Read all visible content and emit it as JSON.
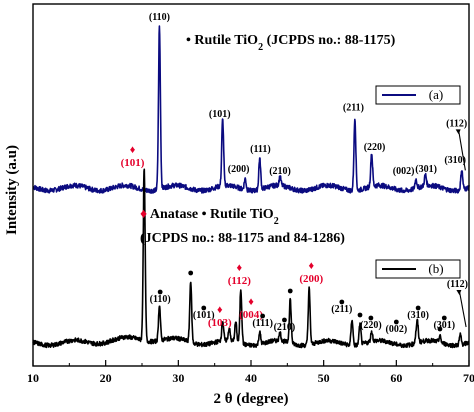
{
  "chart_data": {
    "type": "line",
    "xlabel": "2 θ (degree)",
    "ylabel": "Intensity (a.u)",
    "xlim": [
      10,
      70
    ],
    "xticks": [
      10,
      20,
      30,
      40,
      50,
      60,
      70
    ],
    "grid": false,
    "colors": {
      "a": "#0b0b80",
      "b": "#000000",
      "anatase": "#e4002b",
      "axis": "#000000"
    },
    "series": [
      {
        "name": "(a)",
        "legend": "(a)",
        "color": "#0b0b80",
        "heading": {
          "lines": [
            {
              "parts": [
                {
                  "text": "•",
                  "color": "#000000"
                },
                {
                  "text": " Rutile TiO",
                  "color": "#000000"
                },
                {
                  "text": "2",
                  "color": "#000000",
                  "sub": true
                },
                {
                  "text": " (JCPDS no.: 88-1175)",
                  "color": "#000000"
                }
              ]
            }
          ]
        },
        "peaks": [
          {
            "pos": 27.4,
            "height": 0.74,
            "label": "(110)",
            "lx": 27.4
          },
          {
            "pos": 36.1,
            "height": 0.3,
            "label": "(101)",
            "lx": 35.7
          },
          {
            "pos": 39.2,
            "height": 0.05,
            "label": "(200)",
            "lx": 38.3
          },
          {
            "pos": 41.2,
            "height": 0.14,
            "label": "(111)",
            "lx": 41.3
          },
          {
            "pos": 44.0,
            "height": 0.04,
            "label": "(210)",
            "lx": 44.0
          },
          {
            "pos": 54.3,
            "height": 0.33,
            "label": "(211)",
            "lx": 54.1
          },
          {
            "pos": 56.6,
            "height": 0.15,
            "label": "(220)",
            "lx": 57.0
          },
          {
            "pos": 62.7,
            "height": 0.04,
            "label": "(002)",
            "lx": 61.0
          },
          {
            "pos": 64.0,
            "height": 0.05,
            "label": "(301)",
            "lx": 64.1
          },
          {
            "pos": 69.0,
            "height": 0.09,
            "label": "(310)",
            "lx": 68.1
          }
        ],
        "extra_labels": [
          {
            "label": "(112)",
            "lx": 68.3,
            "arrow_to": 69.5
          }
        ]
      },
      {
        "name": "(b)",
        "legend": "(b)",
        "color": "#000000",
        "heading": {
          "lines": [
            {
              "parts": [
                {
                  "text": "♦",
                  "color": "#e4002b"
                },
                {
                  "text": " Anatase ",
                  "color": "#000000"
                },
                {
                  "text": "•",
                  "color": "#000000"
                },
                {
                  "text": " Rutile TiO",
                  "color": "#000000"
                },
                {
                  "text": "2",
                  "color": "#000000",
                  "sub": true
                }
              ]
            },
            {
              "parts": [
                {
                  "text": "(JCPDS no.: 88-1175 and 84-1286)",
                  "color": "#000000"
                }
              ]
            }
          ]
        },
        "peaks": [
          {
            "pos": 25.3,
            "height": 0.86,
            "label": "(101)",
            "lx": 23.7,
            "anatase": true
          },
          {
            "pos": 27.4,
            "height": 0.18,
            "label": "(110)",
            "lx": 27.5
          },
          {
            "pos": 31.7,
            "height": 0.31,
            "label": "",
            "lx": 31.7
          },
          {
            "pos": 36.1,
            "height": 0.1,
            "label": "(101)",
            "lx": 33.5
          },
          {
            "pos": 37.0,
            "height": 0.06,
            "label": "(103)",
            "lx": 35.7,
            "anatase": true
          },
          {
            "pos": 37.9,
            "height": 0.1,
            "label": "(004)",
            "lx": 40.0,
            "anatase": true
          },
          {
            "pos": 38.6,
            "height": 0.27,
            "label": "(112)",
            "lx": 38.4,
            "anatase": true
          },
          {
            "pos": 41.2,
            "height": 0.06,
            "label": "(111)",
            "lx": 41.6
          },
          {
            "pos": 44.0,
            "height": 0.04,
            "label": "(210)",
            "lx": 44.6
          },
          {
            "pos": 45.4,
            "height": 0.22,
            "label": "",
            "lx": 45.4
          },
          {
            "pos": 48.0,
            "height": 0.28,
            "label": "(200)",
            "lx": 48.3,
            "anatase": true
          },
          {
            "pos": 53.9,
            "height": 0.13,
            "label": "(211)",
            "lx": 52.5
          },
          {
            "pos": 55.0,
            "height": 0.1,
            "label": "",
            "lx": 55.0
          },
          {
            "pos": 56.6,
            "height": 0.05,
            "label": "(220)",
            "lx": 56.5
          },
          {
            "pos": 62.7,
            "height": 0.03,
            "label": "(002)",
            "lx": 60.0
          },
          {
            "pos": 62.9,
            "height": 0.1,
            "label": "(310)",
            "lx": 63.0
          },
          {
            "pos": 66.0,
            "height": 0.03,
            "label": "",
            "lx": 66.0
          },
          {
            "pos": 68.8,
            "height": 0.05,
            "label": "(301)",
            "lx": 66.6
          }
        ],
        "extra_labels": [
          {
            "label": "(112)",
            "lx": 68.4,
            "arrow_to": 69.6
          }
        ]
      }
    ]
  }
}
